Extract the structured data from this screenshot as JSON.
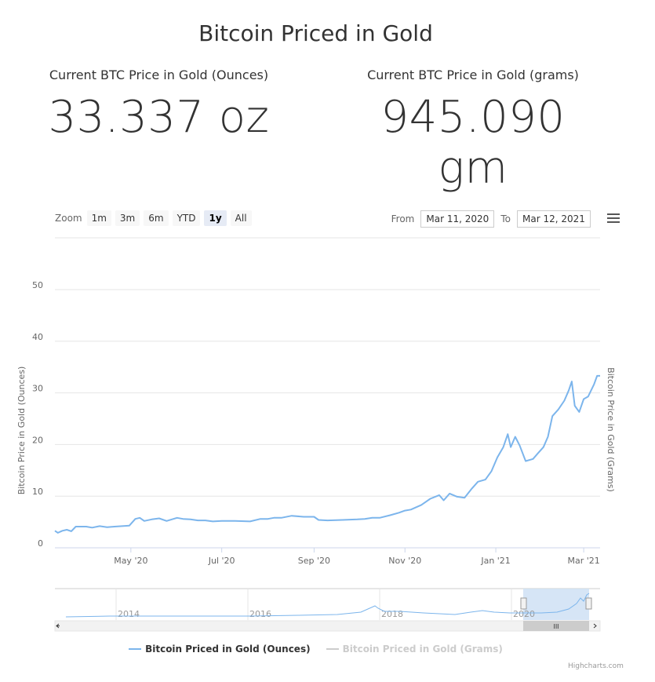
{
  "header": {
    "title": "Bitcoin Priced in Gold"
  },
  "metrics": {
    "ounces": {
      "label": "Current BTC Price in Gold (Ounces)",
      "value": "33.337 oz"
    },
    "grams": {
      "label": "Current BTC Price in Gold (grams)",
      "value": "945.090 gm"
    }
  },
  "range_selector": {
    "zoom_label": "Zoom",
    "buttons": [
      "1m",
      "3m",
      "6m",
      "YTD",
      "1y",
      "All"
    ],
    "active": "1y"
  },
  "date_range": {
    "from_label": "From",
    "from": "Mar 11, 2020",
    "to_label": "To",
    "to": "Mar 12, 2021"
  },
  "legend": {
    "ounces": "Bitcoin Priced in Gold (Ounces)",
    "grams": "Bitcoin Priced in Gold (Grams)"
  },
  "credits": "Highcharts.com",
  "colors": {
    "series": "#7cb5ec",
    "muted": "#cccccc",
    "navigator_fill": "#cfe0f5"
  },
  "chart_data": {
    "type": "line",
    "ylabel": "Bitcoin Price in Gold (Ounces)",
    "ylabel_right": "Bitcoin Price in Gold (Grams)",
    "ylim": [
      0,
      50
    ],
    "yticks": [
      0,
      10,
      20,
      30,
      40,
      50
    ],
    "xlim": [
      "2020-03-11",
      "2021-03-12"
    ],
    "xticks": [
      {
        "date": "2020-05-01",
        "label": "May '20"
      },
      {
        "date": "2020-07-01",
        "label": "Jul '20"
      },
      {
        "date": "2020-09-01",
        "label": "Sep '20"
      },
      {
        "date": "2020-11-01",
        "label": "Nov '20"
      },
      {
        "date": "2021-01-01",
        "label": "Jan '21"
      },
      {
        "date": "2021-03-01",
        "label": "Mar '21"
      }
    ],
    "grid": true,
    "legend_position": "bottom-center",
    "series": [
      {
        "name": "Bitcoin Priced in Gold (Ounces)",
        "points": [
          [
            "2020-03-11",
            3.3
          ],
          [
            "2020-03-13",
            2.9
          ],
          [
            "2020-03-16",
            3.3
          ],
          [
            "2020-03-19",
            3.5
          ],
          [
            "2020-03-22",
            3.2
          ],
          [
            "2020-03-25",
            4.1
          ],
          [
            "2020-04-01",
            4.1
          ],
          [
            "2020-04-05",
            3.9
          ],
          [
            "2020-04-10",
            4.2
          ],
          [
            "2020-04-15",
            4.0
          ],
          [
            "2020-04-20",
            4.1
          ],
          [
            "2020-04-25",
            4.2
          ],
          [
            "2020-04-30",
            4.3
          ],
          [
            "2020-05-04",
            5.6
          ],
          [
            "2020-05-07",
            5.8
          ],
          [
            "2020-05-10",
            5.2
          ],
          [
            "2020-05-15",
            5.5
          ],
          [
            "2020-05-20",
            5.7
          ],
          [
            "2020-05-25",
            5.2
          ],
          [
            "2020-06-01",
            5.8
          ],
          [
            "2020-06-05",
            5.6
          ],
          [
            "2020-06-10",
            5.5
          ],
          [
            "2020-06-15",
            5.3
          ],
          [
            "2020-06-20",
            5.3
          ],
          [
            "2020-06-25",
            5.1
          ],
          [
            "2020-07-01",
            5.2
          ],
          [
            "2020-07-10",
            5.2
          ],
          [
            "2020-07-20",
            5.1
          ],
          [
            "2020-07-27",
            5.6
          ],
          [
            "2020-08-01",
            5.6
          ],
          [
            "2020-08-05",
            5.8
          ],
          [
            "2020-08-10",
            5.8
          ],
          [
            "2020-08-17",
            6.2
          ],
          [
            "2020-08-25",
            6.0
          ],
          [
            "2020-09-01",
            6.0
          ],
          [
            "2020-09-04",
            5.4
          ],
          [
            "2020-09-10",
            5.3
          ],
          [
            "2020-09-20",
            5.4
          ],
          [
            "2020-09-30",
            5.5
          ],
          [
            "2020-10-05",
            5.6
          ],
          [
            "2020-10-10",
            5.8
          ],
          [
            "2020-10-15",
            5.8
          ],
          [
            "2020-10-22",
            6.3
          ],
          [
            "2020-10-28",
            6.8
          ],
          [
            "2020-11-01",
            7.2
          ],
          [
            "2020-11-05",
            7.4
          ],
          [
            "2020-11-12",
            8.3
          ],
          [
            "2020-11-18",
            9.5
          ],
          [
            "2020-11-24",
            10.2
          ],
          [
            "2020-11-27",
            9.2
          ],
          [
            "2020-12-01",
            10.5
          ],
          [
            "2020-12-06",
            9.9
          ],
          [
            "2020-12-11",
            9.7
          ],
          [
            "2020-12-16",
            11.5
          ],
          [
            "2020-12-20",
            12.8
          ],
          [
            "2020-12-25",
            13.2
          ],
          [
            "2020-12-29",
            14.8
          ],
          [
            "2021-01-02",
            17.5
          ],
          [
            "2021-01-06",
            19.5
          ],
          [
            "2021-01-09",
            22.0
          ],
          [
            "2021-01-11",
            19.5
          ],
          [
            "2021-01-14",
            21.5
          ],
          [
            "2021-01-17",
            19.8
          ],
          [
            "2021-01-21",
            16.8
          ],
          [
            "2021-01-26",
            17.2
          ],
          [
            "2021-01-29",
            18.2
          ],
          [
            "2021-02-02",
            19.5
          ],
          [
            "2021-02-05",
            21.5
          ],
          [
            "2021-02-08",
            25.5
          ],
          [
            "2021-02-12",
            26.8
          ],
          [
            "2021-02-16",
            28.5
          ],
          [
            "2021-02-19",
            30.5
          ],
          [
            "2021-02-21",
            32.2
          ],
          [
            "2021-02-23",
            27.5
          ],
          [
            "2021-02-26",
            26.3
          ],
          [
            "2021-03-01",
            28.8
          ],
          [
            "2021-03-04",
            29.3
          ],
          [
            "2021-03-06",
            30.5
          ],
          [
            "2021-03-08",
            31.7
          ],
          [
            "2021-03-10",
            33.3
          ],
          [
            "2021-03-12",
            33.3
          ]
        ]
      },
      {
        "name": "Bitcoin Priced in Gold (Grams)",
        "points": []
      }
    ],
    "navigator": {
      "tick_labels": [
        "2014",
        "2016",
        "2018",
        "2020"
      ],
      "scroll_grip": "III"
    }
  }
}
